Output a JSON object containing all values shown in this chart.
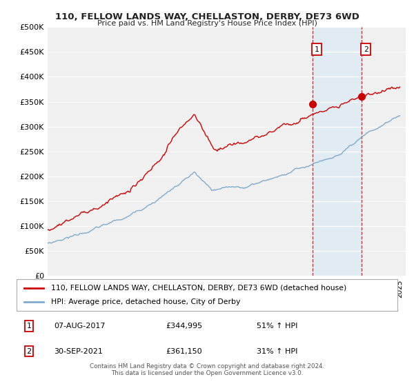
{
  "title": "110, FELLOW LANDS WAY, CHELLASTON, DERBY, DE73 6WD",
  "subtitle": "Price paid vs. HM Land Registry's House Price Index (HPI)",
  "ylabel_ticks": [
    "£0",
    "£50K",
    "£100K",
    "£150K",
    "£200K",
    "£250K",
    "£300K",
    "£350K",
    "£400K",
    "£450K",
    "£500K"
  ],
  "ytick_values": [
    0,
    50000,
    100000,
    150000,
    200000,
    250000,
    300000,
    350000,
    400000,
    450000,
    500000
  ],
  "ylim": [
    0,
    500000
  ],
  "xlim_start": 1995.0,
  "xlim_end": 2025.5,
  "hpi_color": "#7eaacc",
  "price_color": "#cc0000",
  "sale1_x": 2017.58,
  "sale1_y": 344995,
  "sale2_x": 2021.75,
  "sale2_y": 361150,
  "legend_line1": "110, FELLOW LANDS WAY, CHELLASTON, DERBY, DE73 6WD (detached house)",
  "legend_line2": "HPI: Average price, detached house, City of Derby",
  "footer1": "Contains HM Land Registry data © Crown copyright and database right 2024.",
  "footer2": "This data is licensed under the Open Government Licence v3.0.",
  "bg_color": "#ffffff",
  "plot_bg_color": "#f0f0f0",
  "grid_color": "#ffffff",
  "shade_color": "#dce9f5"
}
